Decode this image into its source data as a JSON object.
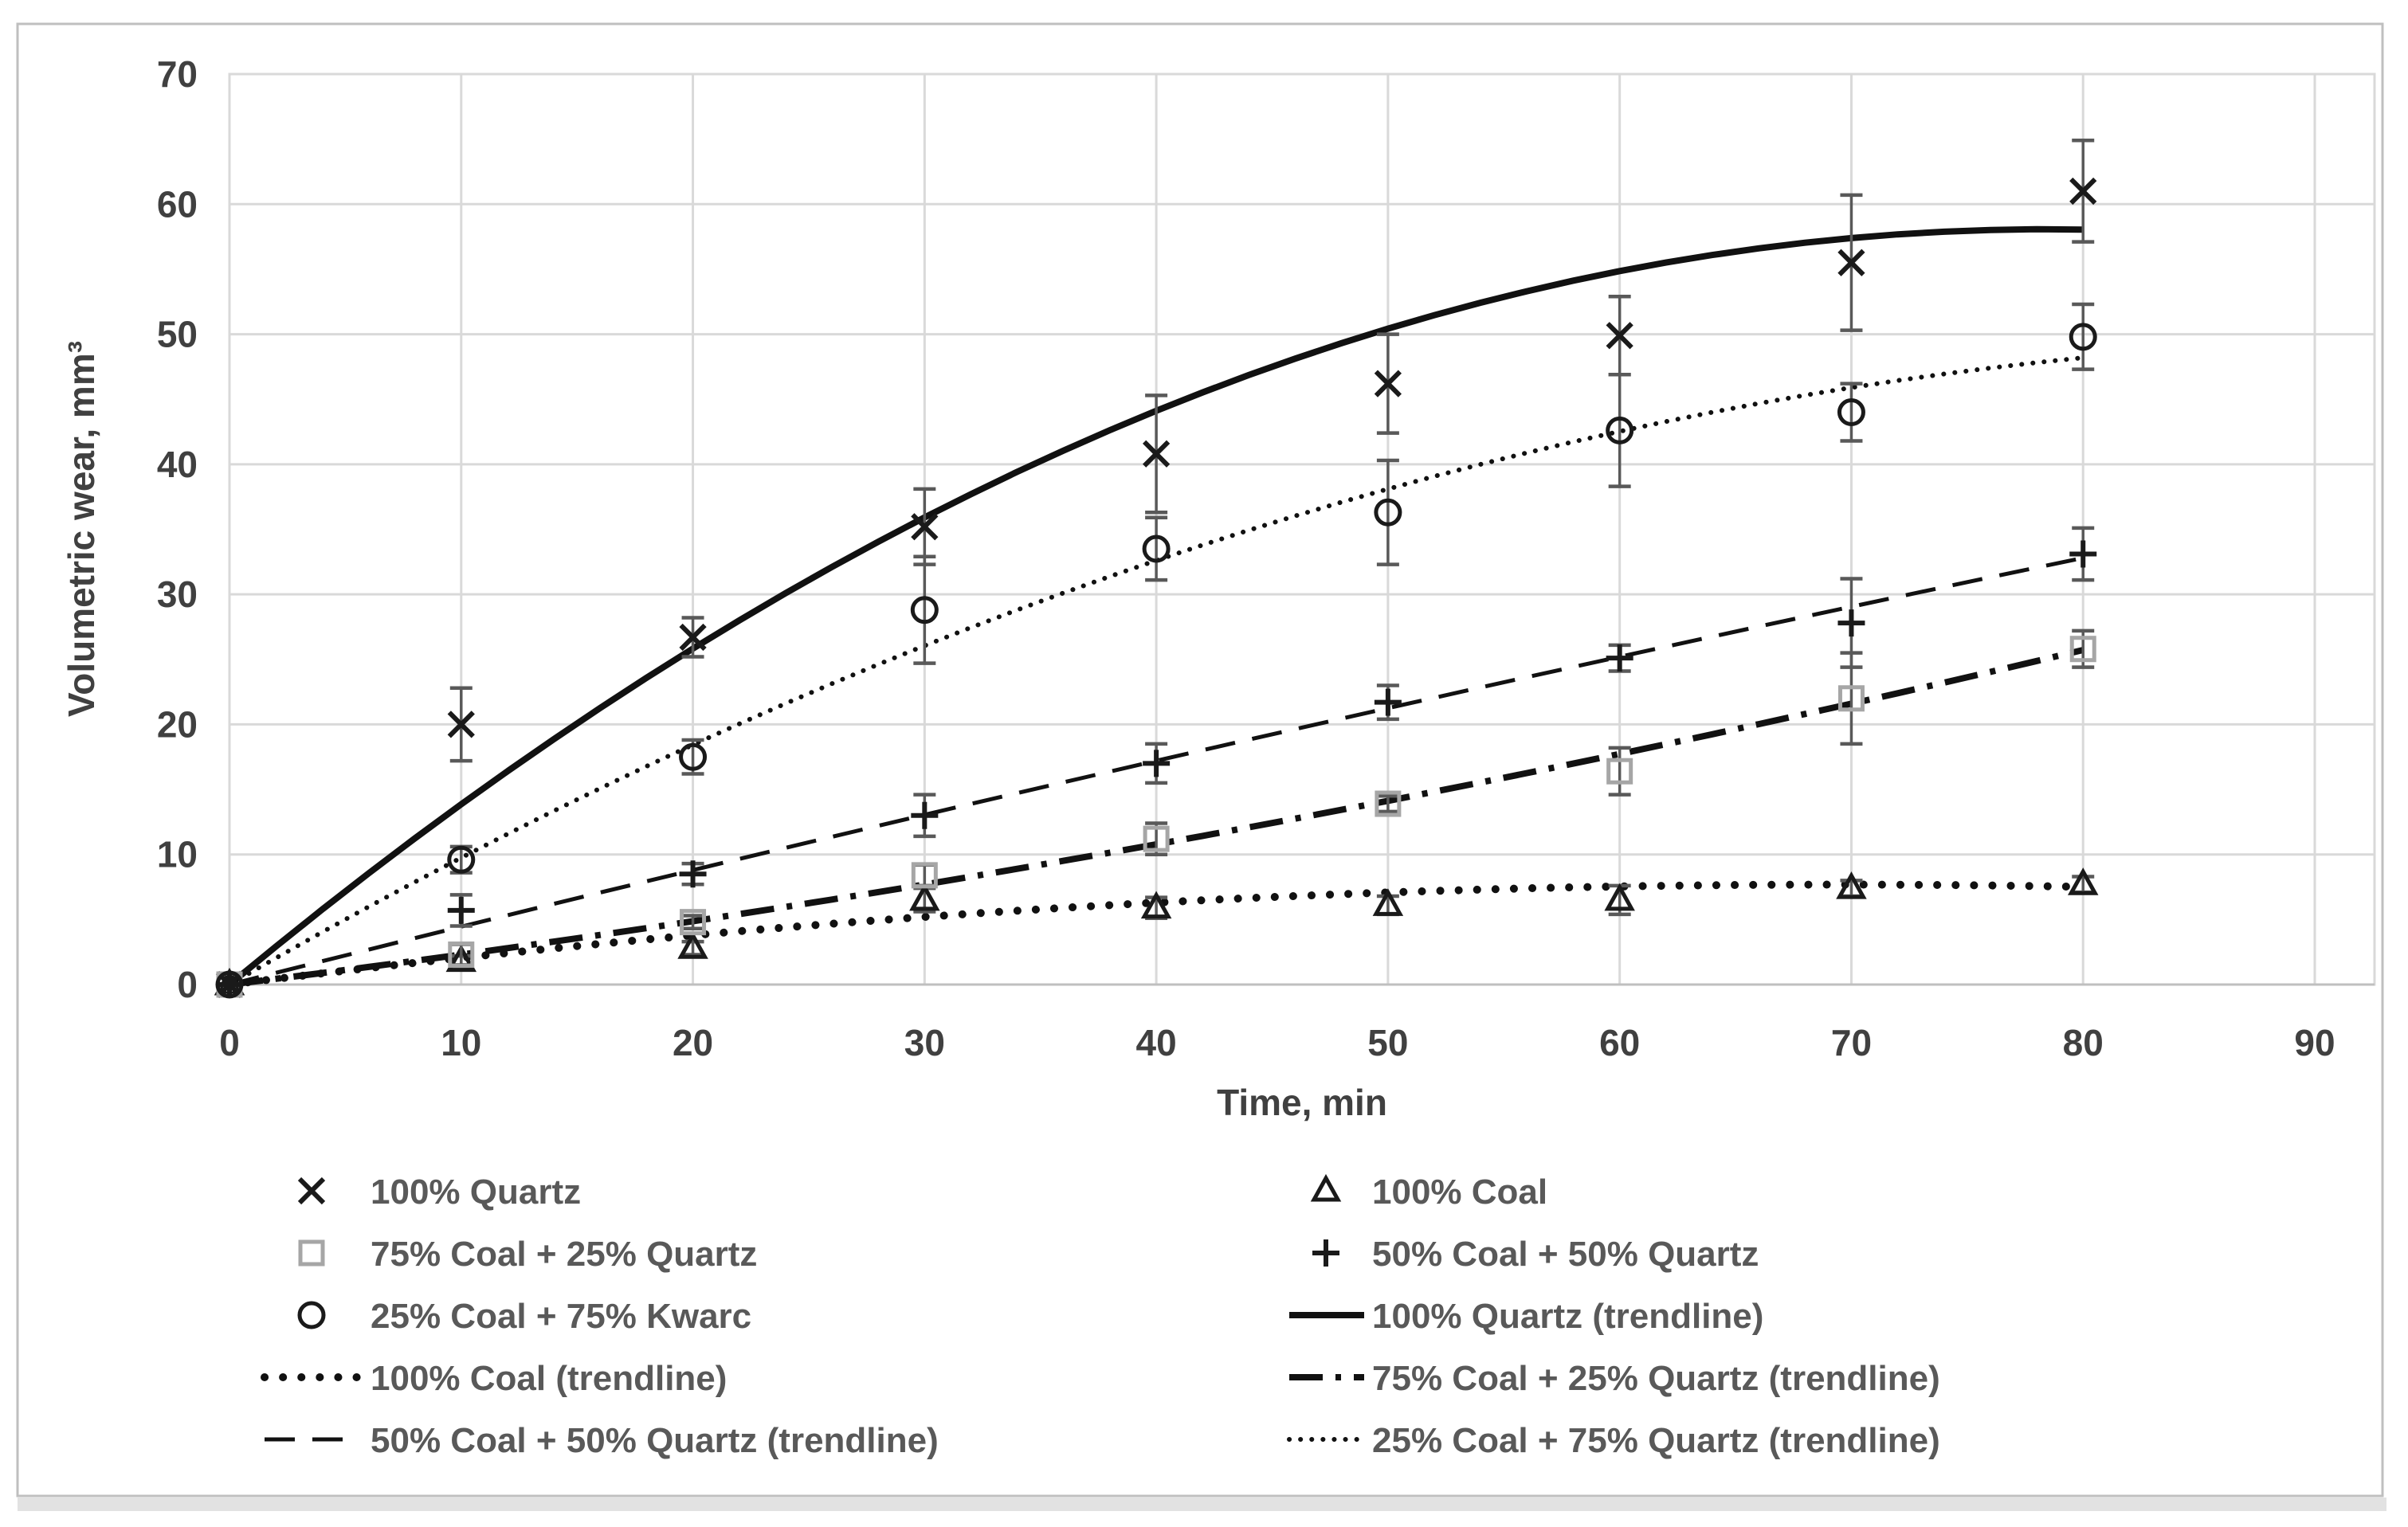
{
  "figure": {
    "background": "#ffffff",
    "frame_border_color": "#bfbfbf",
    "bottom_strip_color": "#e2e2e2",
    "gridline_color": "#d9d9d9",
    "axis_line_color": "#bfbfbf",
    "tick_text_color": "#404040",
    "legend_text_color": "#595959",
    "errorbar_color": "#595959"
  },
  "chart_data": {
    "type": "scatter",
    "title": "",
    "xlabel": "Time, min",
    "ylabel": "Volumetric wear, mm³",
    "xlim": [
      0,
      90
    ],
    "ylim": [
      0,
      70
    ],
    "x_ticks": [
      0,
      10,
      20,
      30,
      40,
      50,
      60,
      70,
      80,
      90
    ],
    "y_ticks": [
      0,
      10,
      20,
      30,
      40,
      50,
      60,
      70
    ],
    "grid": true,
    "legend_position": "bottom",
    "x": [
      0,
      10,
      20,
      30,
      40,
      50,
      60,
      70,
      80
    ],
    "series": [
      {
        "name": "100% Quartz",
        "marker": "x",
        "color": "#1a1a1a",
        "values": [
          0,
          20.0,
          26.7,
          35.2,
          40.8,
          46.2,
          49.9,
          55.5,
          61.0
        ],
        "errors": [
          0,
          2.8,
          1.5,
          2.9,
          4.5,
          3.8,
          3.0,
          5.2,
          3.9
        ]
      },
      {
        "name": "100% Coal",
        "marker": "triangle",
        "color": "#1a1a1a",
        "values": [
          0,
          1.8,
          2.8,
          6.5,
          5.9,
          6.1,
          6.5,
          7.4,
          7.7
        ],
        "errors": [
          0,
          0.4,
          0.5,
          0.9,
          0.8,
          0.7,
          1.1,
          0.6,
          0.6
        ]
      },
      {
        "name": "75% Coal + 25% Quartz",
        "marker": "square",
        "color": "#a6a6a6",
        "values": [
          0,
          2.3,
          4.8,
          8.4,
          11.2,
          13.9,
          16.4,
          22.0,
          25.8
        ],
        "errors": [
          0,
          0.8,
          0.5,
          0.8,
          1.2,
          0.6,
          1.8,
          3.5,
          1.4
        ]
      },
      {
        "name": "50% Coal + 50% Quartz",
        "marker": "plus",
        "color": "#1a1a1a",
        "values": [
          0,
          5.7,
          8.5,
          13.0,
          17.0,
          21.7,
          25.1,
          27.8,
          33.1
        ],
        "errors": [
          0,
          1.2,
          0.8,
          1.6,
          1.5,
          1.3,
          1.0,
          3.4,
          2.0
        ]
      },
      {
        "name": "25% Coal + 75% Kwarc",
        "marker": "circle",
        "color": "#1a1a1a",
        "values": [
          0,
          9.6,
          17.5,
          28.8,
          33.5,
          36.3,
          42.6,
          44.0,
          49.8
        ],
        "errors": [
          0,
          1.0,
          1.3,
          4.1,
          2.4,
          4.0,
          4.3,
          2.2,
          2.5
        ]
      }
    ],
    "trendlines": [
      {
        "name": "100% Quartz (trendline)",
        "style": "solid",
        "coeffs": {
          "b": 1.48,
          "c": -0.00943
        },
        "x_range": [
          0,
          80
        ]
      },
      {
        "name": "25% Coal + 75% Quartz (trendline)",
        "style": "fine-dotted",
        "coeffs": {
          "b": 1.028,
          "c": -0.00532
        },
        "x_range": [
          0,
          80
        ]
      },
      {
        "name": "50% Coal + 50% Quartz (trendline)",
        "style": "dashed",
        "coeffs": {
          "b": 0.45,
          "c": -0.0005
        },
        "x_range": [
          0,
          80
        ]
      },
      {
        "name": "75% Coal + 25% Quartz (trendline)",
        "style": "dash-dot",
        "coeffs": {
          "b": 0.2175,
          "c": 0.0013
        },
        "x_range": [
          0,
          80
        ]
      },
      {
        "name": "100% Coal (trendline)",
        "style": "bold-dotted",
        "coeffs": {
          "b": 0.2211,
          "c": -0.00159
        },
        "x_range": [
          0,
          80
        ]
      }
    ],
    "legend_rows": [
      {
        "left": {
          "symbol": "marker-x",
          "label": "100% Quartz"
        },
        "right": {
          "symbol": "marker-triangle",
          "label": "100% Coal"
        }
      },
      {
        "left": {
          "symbol": "marker-square",
          "label": "75% Coal + 25% Quartz"
        },
        "right": {
          "symbol": "marker-plus",
          "label": "50% Coal + 50% Quartz"
        }
      },
      {
        "left": {
          "symbol": "marker-circle",
          "label": "25% Coal + 75% Kwarc"
        },
        "right": {
          "symbol": "line-solid",
          "label": "100% Quartz (trendline)"
        }
      },
      {
        "left": {
          "symbol": "line-bold-dotted",
          "label": "100% Coal (trendline)"
        },
        "right": {
          "symbol": "line-dash-dot",
          "label": "75% Coal + 25% Quartz (trendline)"
        }
      },
      {
        "left": {
          "symbol": "line-dashed",
          "label": "50% Coal + 50% Quartz (trendline)"
        },
        "right": {
          "symbol": "line-fine-dotted",
          "label": "25% Coal + 75% Quartz (trendline)"
        }
      }
    ]
  }
}
